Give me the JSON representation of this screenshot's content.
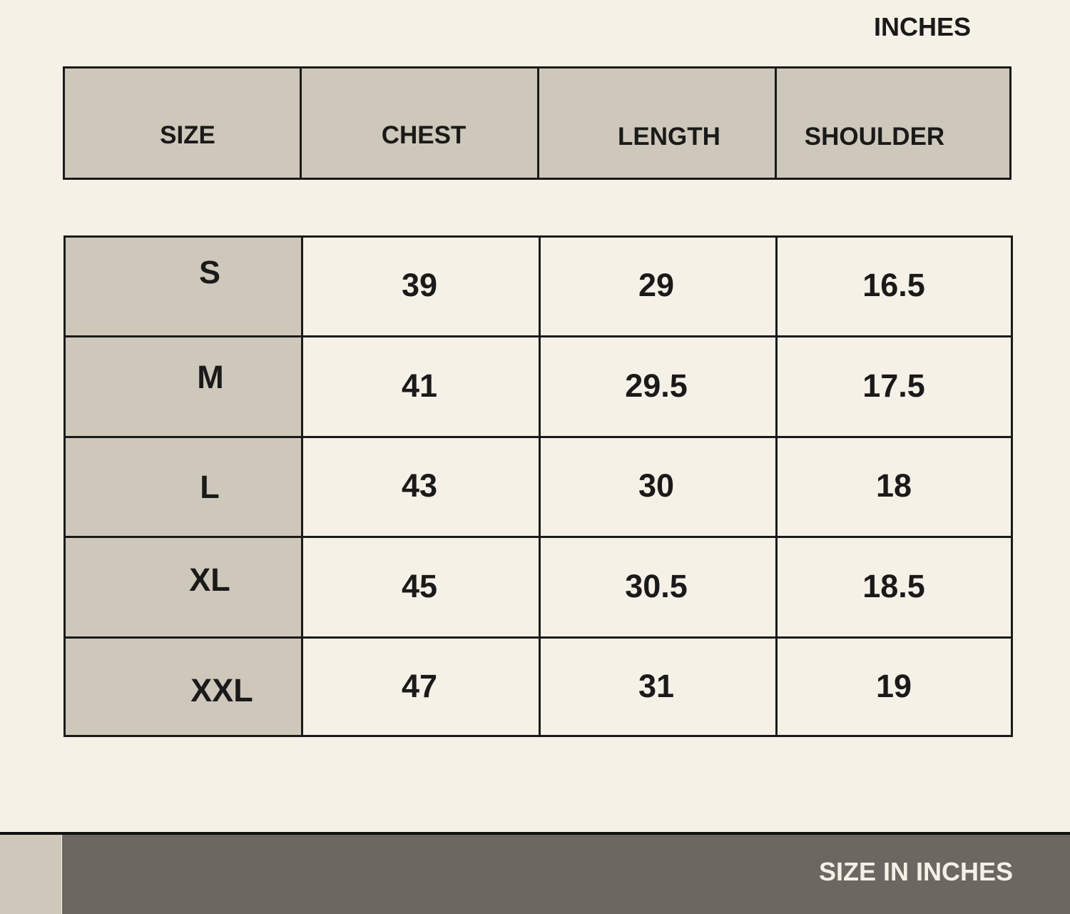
{
  "unit_label": "INCHES",
  "columns": [
    "SIZE",
    "CHEST",
    "LENGTH",
    "SHOULDER"
  ],
  "rows": [
    {
      "size": "S",
      "chest": "39",
      "length": "29",
      "shoulder": "16.5"
    },
    {
      "size": "M",
      "chest": "41",
      "length": "29.5",
      "shoulder": "17.5"
    },
    {
      "size": "L",
      "chest": "43",
      "length": "30",
      "shoulder": "18"
    },
    {
      "size": "XL",
      "chest": "45",
      "length": "30.5",
      "shoulder": "18.5"
    },
    {
      "size": "XXL",
      "chest": "47",
      "length": "31",
      "shoulder": "19"
    }
  ],
  "footer": {
    "label": "SIZE IN INCHES"
  },
  "colors": {
    "background": "#f5f1e7",
    "header_fill": "#cec8bb",
    "footer_fill": "#6c6861",
    "border": "#1a1a1a"
  }
}
